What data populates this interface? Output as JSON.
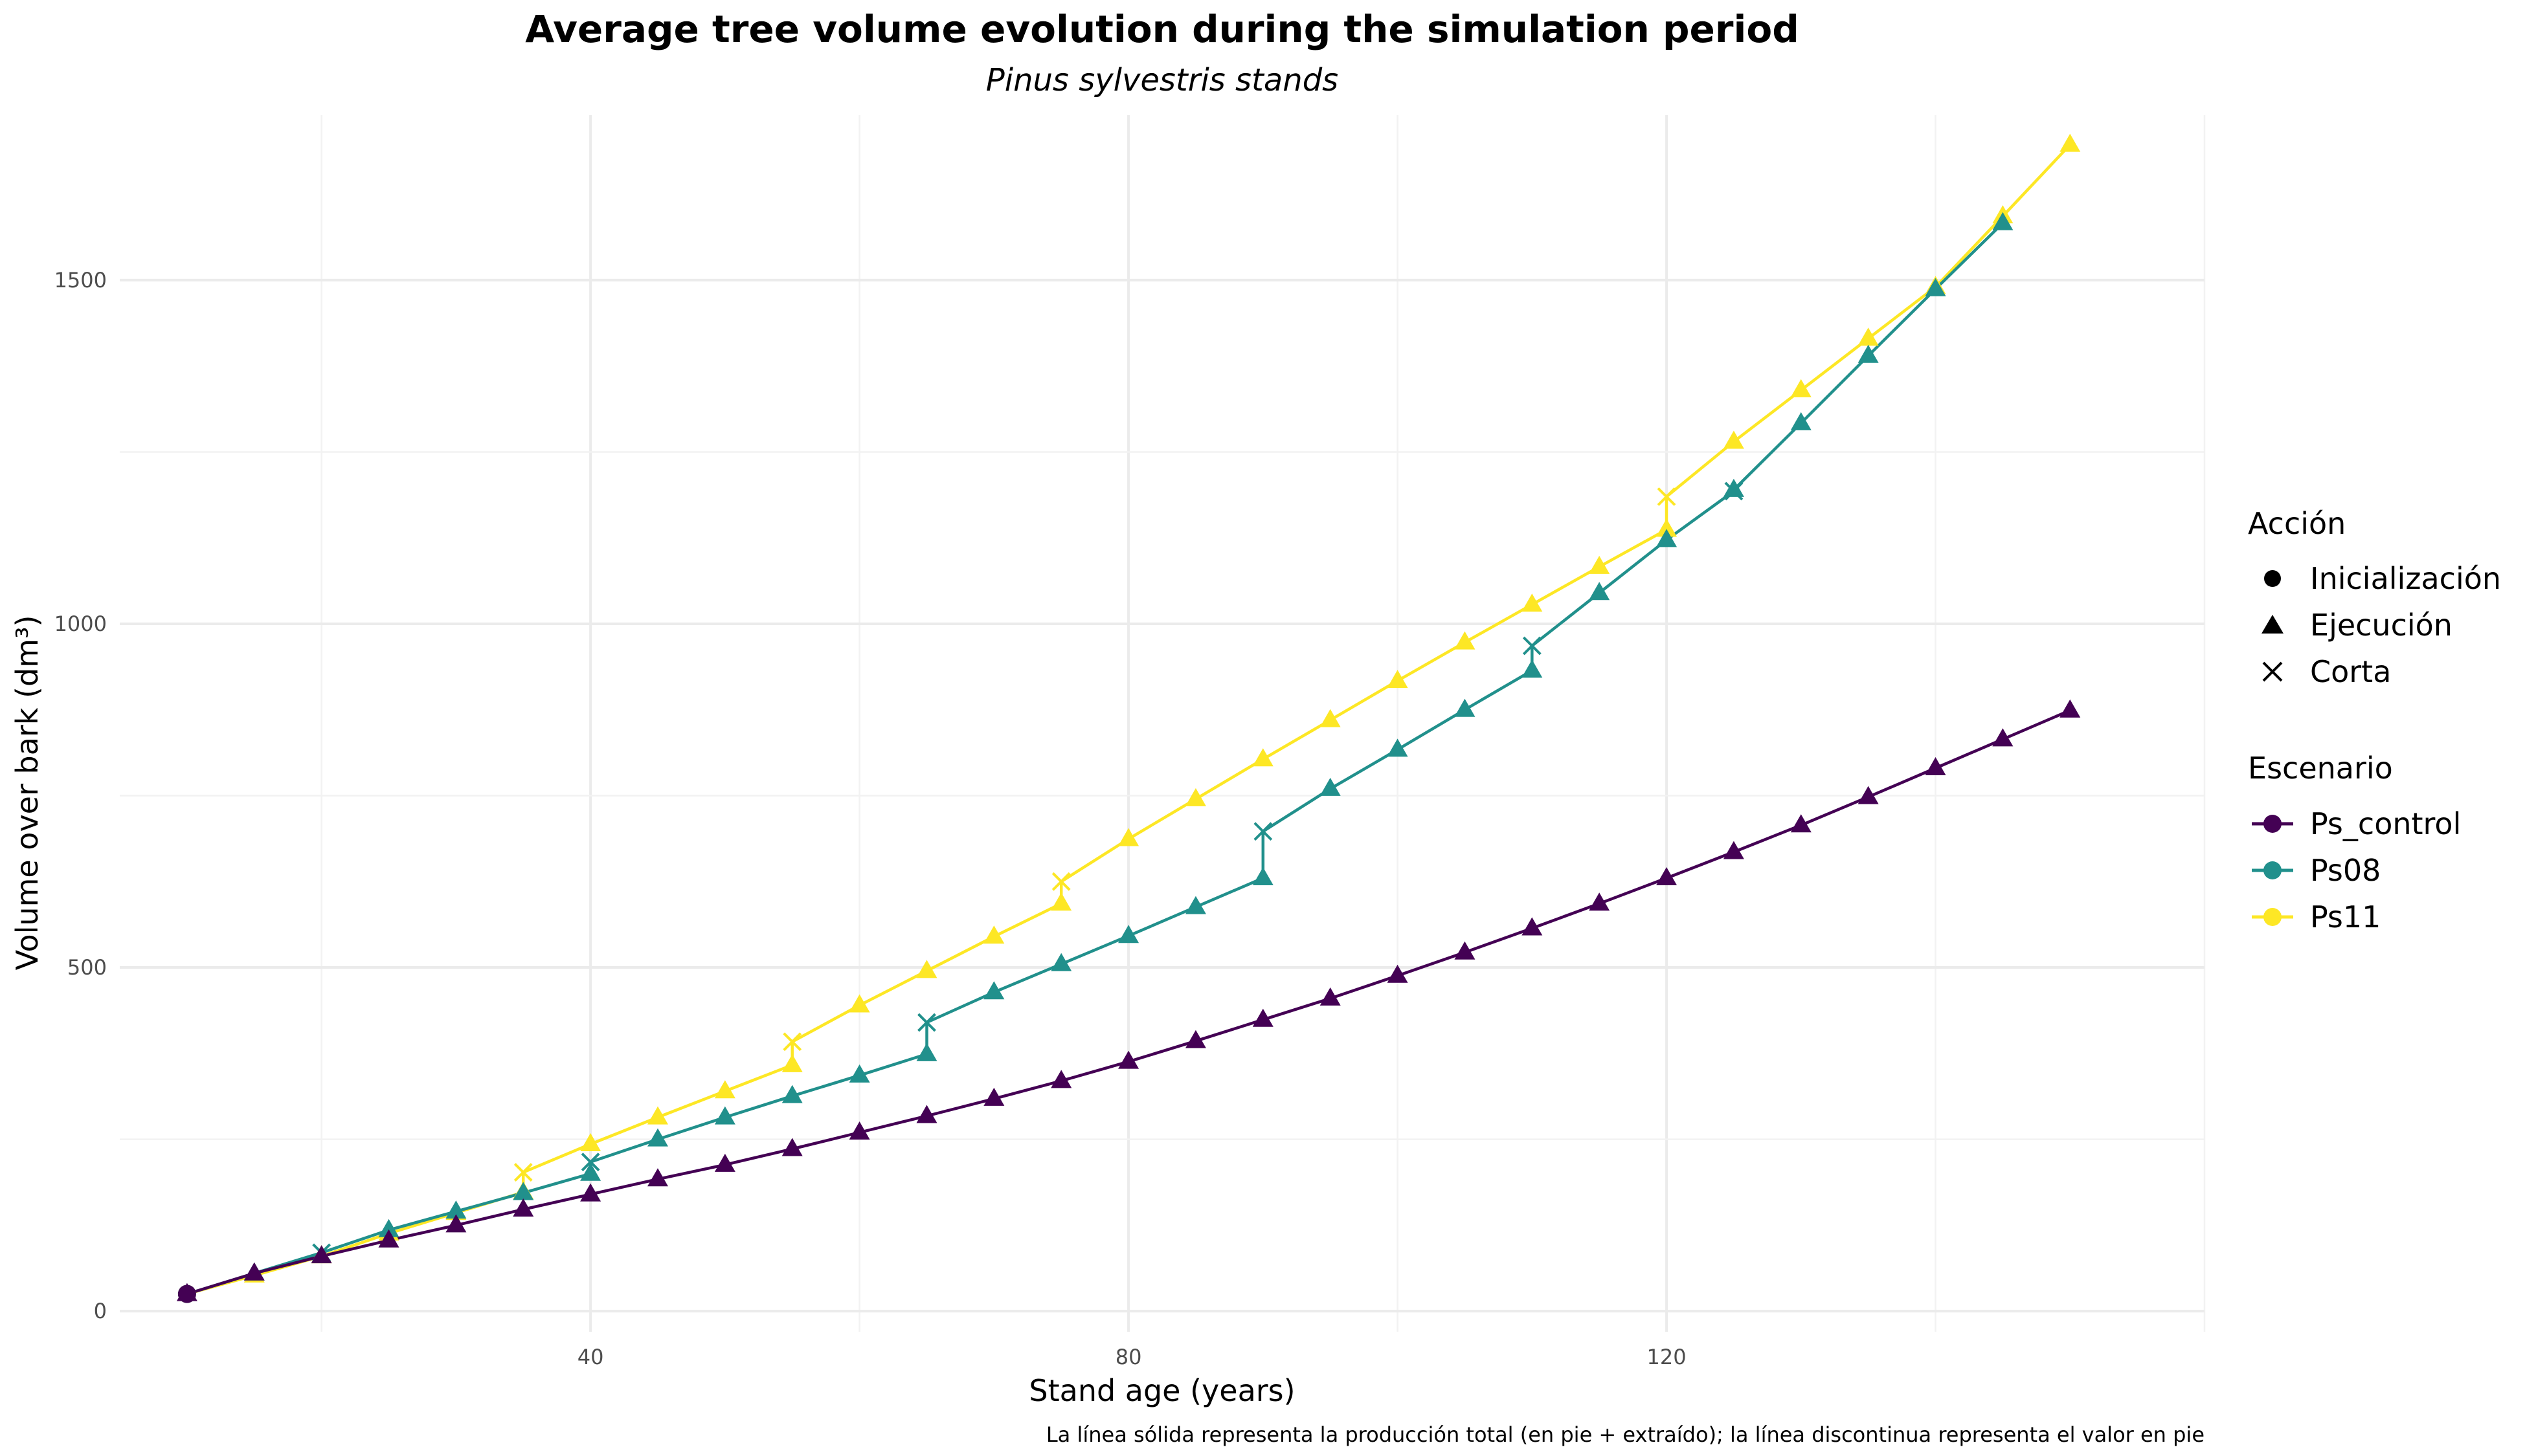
{
  "chart_data": {
    "type": "line",
    "title": "Average tree volume evolution during the simulation period",
    "subtitle": "Pinus sylvestris stands",
    "xlabel": "Stand age (years)",
    "ylabel": "Volume over bark (dm³)",
    "caption": "La línea sólida representa la producción total (en pie + extraído); la línea discontinua representa el valor en pie",
    "xlim": [
      5,
      160
    ],
    "ylim": [
      -30,
      1740
    ],
    "x_ticks": [
      40,
      80,
      120
    ],
    "y_ticks": [
      0,
      500,
      1000,
      1500
    ],
    "grid": true,
    "legend_position": "right",
    "legend": {
      "shape_title": "Acción",
      "shape_items": [
        {
          "label": "Inicialización",
          "shape": "circle"
        },
        {
          "label": "Ejecución",
          "shape": "triangle"
        },
        {
          "label": "Corta",
          "shape": "cross"
        }
      ],
      "color_title": "Escenario"
    },
    "series": [
      {
        "name": "Ps_control",
        "color": "#440154",
        "points": [
          {
            "x": 10,
            "y": 25,
            "action": "Inicialización"
          },
          {
            "x": 10,
            "y": 25,
            "action": "Ejecución"
          },
          {
            "x": 15,
            "y": 55,
            "action": "Ejecución"
          },
          {
            "x": 20,
            "y": 80,
            "action": "Ejecución"
          },
          {
            "x": 25,
            "y": 103,
            "action": "Ejecución"
          },
          {
            "x": 30,
            "y": 125,
            "action": "Ejecución"
          },
          {
            "x": 35,
            "y": 148,
            "action": "Ejecución"
          },
          {
            "x": 40,
            "y": 170,
            "action": "Ejecución"
          },
          {
            "x": 45,
            "y": 192,
            "action": "Ejecución"
          },
          {
            "x": 50,
            "y": 213,
            "action": "Ejecución"
          },
          {
            "x": 55,
            "y": 236,
            "action": "Ejecución"
          },
          {
            "x": 60,
            "y": 260,
            "action": "Ejecución"
          },
          {
            "x": 65,
            "y": 284,
            "action": "Ejecución"
          },
          {
            "x": 70,
            "y": 309,
            "action": "Ejecución"
          },
          {
            "x": 75,
            "y": 335,
            "action": "Ejecución"
          },
          {
            "x": 80,
            "y": 363,
            "action": "Ejecución"
          },
          {
            "x": 85,
            "y": 393,
            "action": "Ejecución"
          },
          {
            "x": 90,
            "y": 424,
            "action": "Ejecución"
          },
          {
            "x": 95,
            "y": 455,
            "action": "Ejecución"
          },
          {
            "x": 100,
            "y": 488,
            "action": "Ejecución"
          },
          {
            "x": 105,
            "y": 522,
            "action": "Ejecución"
          },
          {
            "x": 110,
            "y": 557,
            "action": "Ejecución"
          },
          {
            "x": 115,
            "y": 593,
            "action": "Ejecución"
          },
          {
            "x": 120,
            "y": 630,
            "action": "Ejecución"
          },
          {
            "x": 125,
            "y": 668,
            "action": "Ejecución"
          },
          {
            "x": 130,
            "y": 707,
            "action": "Ejecución"
          },
          {
            "x": 135,
            "y": 748,
            "action": "Ejecución"
          },
          {
            "x": 140,
            "y": 790,
            "action": "Ejecución"
          },
          {
            "x": 145,
            "y": 832,
            "action": "Ejecución"
          },
          {
            "x": 150,
            "y": 874,
            "action": "Ejecución"
          }
        ]
      },
      {
        "name": "Ps08",
        "color": "#21908C",
        "points": [
          {
            "x": 10,
            "y": 25,
            "action": "Inicialización"
          },
          {
            "x": 15,
            "y": 55,
            "action": "Ejecución"
          },
          {
            "x": 20,
            "y": 85,
            "action": "Corta"
          },
          {
            "x": 25,
            "y": 118,
            "action": "Ejecución"
          },
          {
            "x": 30,
            "y": 145,
            "action": "Ejecución"
          },
          {
            "x": 35,
            "y": 172,
            "action": "Ejecución"
          },
          {
            "x": 40,
            "y": 200,
            "action": "Ejecución"
          },
          {
            "x": 40,
            "y": 217,
            "action": "Corta"
          },
          {
            "x": 45,
            "y": 250,
            "action": "Ejecución"
          },
          {
            "x": 50,
            "y": 282,
            "action": "Ejecución"
          },
          {
            "x": 55,
            "y": 313,
            "action": "Ejecución"
          },
          {
            "x": 60,
            "y": 343,
            "action": "Ejecución"
          },
          {
            "x": 65,
            "y": 374,
            "action": "Ejecución"
          },
          {
            "x": 65,
            "y": 420,
            "action": "Corta"
          },
          {
            "x": 70,
            "y": 464,
            "action": "Ejecución"
          },
          {
            "x": 75,
            "y": 505,
            "action": "Ejecución"
          },
          {
            "x": 80,
            "y": 546,
            "action": "Ejecución"
          },
          {
            "x": 85,
            "y": 588,
            "action": "Ejecución"
          },
          {
            "x": 90,
            "y": 630,
            "action": "Ejecución"
          },
          {
            "x": 90,
            "y": 698,
            "action": "Corta"
          },
          {
            "x": 95,
            "y": 760,
            "action": "Ejecución"
          },
          {
            "x": 100,
            "y": 817,
            "action": "Ejecución"
          },
          {
            "x": 105,
            "y": 875,
            "action": "Ejecución"
          },
          {
            "x": 110,
            "y": 932,
            "action": "Ejecución"
          },
          {
            "x": 110,
            "y": 968,
            "action": "Corta"
          },
          {
            "x": 115,
            "y": 1045,
            "action": "Ejecución"
          },
          {
            "x": 120,
            "y": 1122,
            "action": "Ejecución"
          },
          {
            "x": 125,
            "y": 1193,
            "action": "Corta"
          },
          {
            "x": 125,
            "y": 1195,
            "action": "Ejecución"
          },
          {
            "x": 130,
            "y": 1292,
            "action": "Ejecución"
          },
          {
            "x": 135,
            "y": 1390,
            "action": "Ejecución"
          },
          {
            "x": 140,
            "y": 1487,
            "action": "Ejecución"
          },
          {
            "x": 145,
            "y": 1583,
            "action": "Ejecución"
          }
        ]
      },
      {
        "name": "Ps11",
        "color": "#FDE725",
        "points": [
          {
            "x": 10,
            "y": 25,
            "action": "Inicialización"
          },
          {
            "x": 15,
            "y": 52,
            "action": "Ejecución"
          },
          {
            "x": 20,
            "y": 80,
            "action": "Ejecución"
          },
          {
            "x": 25,
            "y": 113,
            "action": "Ejecución"
          },
          {
            "x": 30,
            "y": 143,
            "action": "Ejecución"
          },
          {
            "x": 35,
            "y": 173,
            "action": "Ejecución"
          },
          {
            "x": 35,
            "y": 202,
            "action": "Corta"
          },
          {
            "x": 40,
            "y": 243,
            "action": "Ejecución"
          },
          {
            "x": 45,
            "y": 282,
            "action": "Ejecución"
          },
          {
            "x": 50,
            "y": 320,
            "action": "Ejecución"
          },
          {
            "x": 55,
            "y": 358,
            "action": "Ejecución"
          },
          {
            "x": 55,
            "y": 392,
            "action": "Corta"
          },
          {
            "x": 60,
            "y": 445,
            "action": "Ejecución"
          },
          {
            "x": 65,
            "y": 495,
            "action": "Ejecución"
          },
          {
            "x": 70,
            "y": 545,
            "action": "Ejecución"
          },
          {
            "x": 75,
            "y": 593,
            "action": "Ejecución"
          },
          {
            "x": 75,
            "y": 625,
            "action": "Corta"
          },
          {
            "x": 80,
            "y": 687,
            "action": "Ejecución"
          },
          {
            "x": 85,
            "y": 745,
            "action": "Ejecución"
          },
          {
            "x": 90,
            "y": 803,
            "action": "Ejecución"
          },
          {
            "x": 95,
            "y": 860,
            "action": "Ejecución"
          },
          {
            "x": 100,
            "y": 917,
            "action": "Ejecución"
          },
          {
            "x": 105,
            "y": 973,
            "action": "Ejecución"
          },
          {
            "x": 110,
            "y": 1028,
            "action": "Ejecución"
          },
          {
            "x": 115,
            "y": 1083,
            "action": "Ejecución"
          },
          {
            "x": 120,
            "y": 1137,
            "action": "Ejecución"
          },
          {
            "x": 120,
            "y": 1185,
            "action": "Corta"
          },
          {
            "x": 125,
            "y": 1265,
            "action": "Ejecución"
          },
          {
            "x": 130,
            "y": 1340,
            "action": "Ejecución"
          },
          {
            "x": 135,
            "y": 1415,
            "action": "Ejecución"
          },
          {
            "x": 140,
            "y": 1490,
            "action": "Ejecución"
          },
          {
            "x": 145,
            "y": 1593,
            "action": "Ejecución"
          },
          {
            "x": 150,
            "y": 1697,
            "action": "Ejecución"
          }
        ]
      }
    ]
  }
}
